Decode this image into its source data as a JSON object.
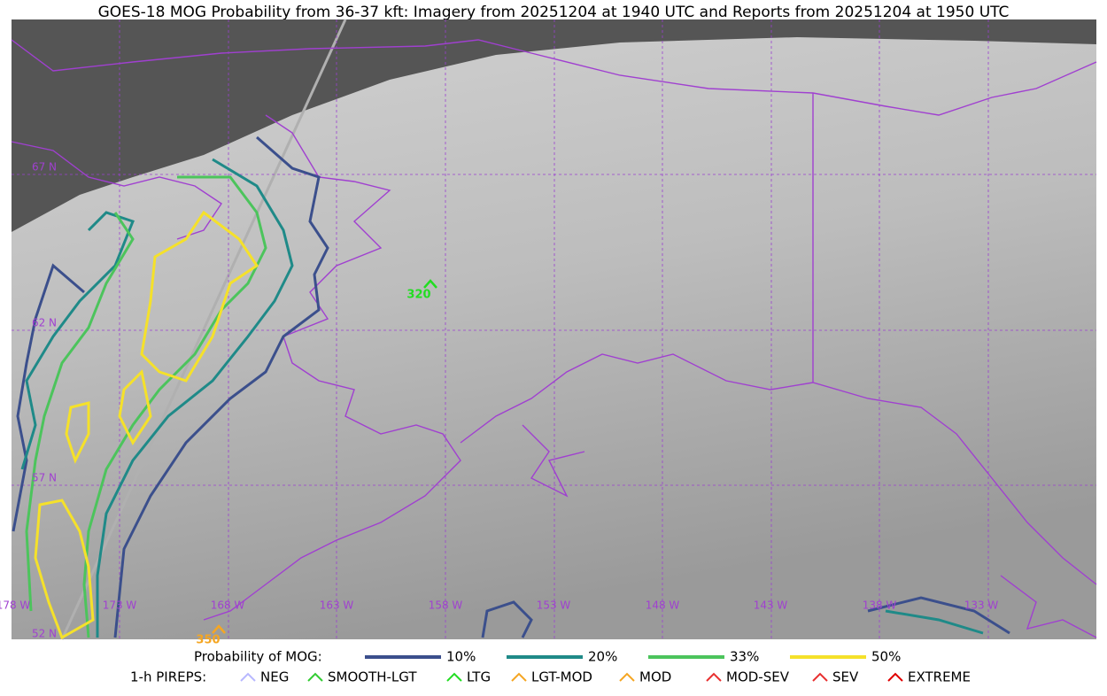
{
  "title": "GOES-18 MOG Probability from 36-37 kft: Imagery from 20251204 at 1940 UTC and Reports from 20251204 at 1950 UTC",
  "grid_labels": {
    "lat": [
      "67 N",
      "62 N",
      "57 N",
      "52 N"
    ],
    "lon": [
      "178 W",
      "173 W",
      "168 W",
      "163 W",
      "158 W",
      "153 W",
      "148 W",
      "143 W",
      "138 W",
      "133 W"
    ]
  },
  "reports": [
    {
      "label": "320",
      "color": "#22dd22"
    },
    {
      "label": "350",
      "color": "#f5a623"
    }
  ],
  "legend": {
    "probability": {
      "label": "Probability of MOG:",
      "items": [
        {
          "label": "10%",
          "color": "#3b4f8c"
        },
        {
          "label": "20%",
          "color": "#1f8a88"
        },
        {
          "label": "33%",
          "color": "#4cc45c"
        },
        {
          "label": "50%",
          "color": "#f5e12a"
        }
      ]
    },
    "pireps": {
      "label": "1-h PIREPS:",
      "items": [
        {
          "label": "NEG",
          "color": "#b8b8ff"
        },
        {
          "label": "SMOOTH-LGT",
          "color": "#33cc33"
        },
        {
          "label": "LTG",
          "color": "#22dd22"
        },
        {
          "label": "LGT-MOD",
          "color": "#f5a623"
        },
        {
          "label": "MOD",
          "color": "#f5a623"
        },
        {
          "label": "MOD-SEV",
          "color": "#e83030"
        },
        {
          "label": "SEV",
          "color": "#e83030"
        },
        {
          "label": "EXTREME",
          "color": "#e00000"
        }
      ]
    }
  }
}
